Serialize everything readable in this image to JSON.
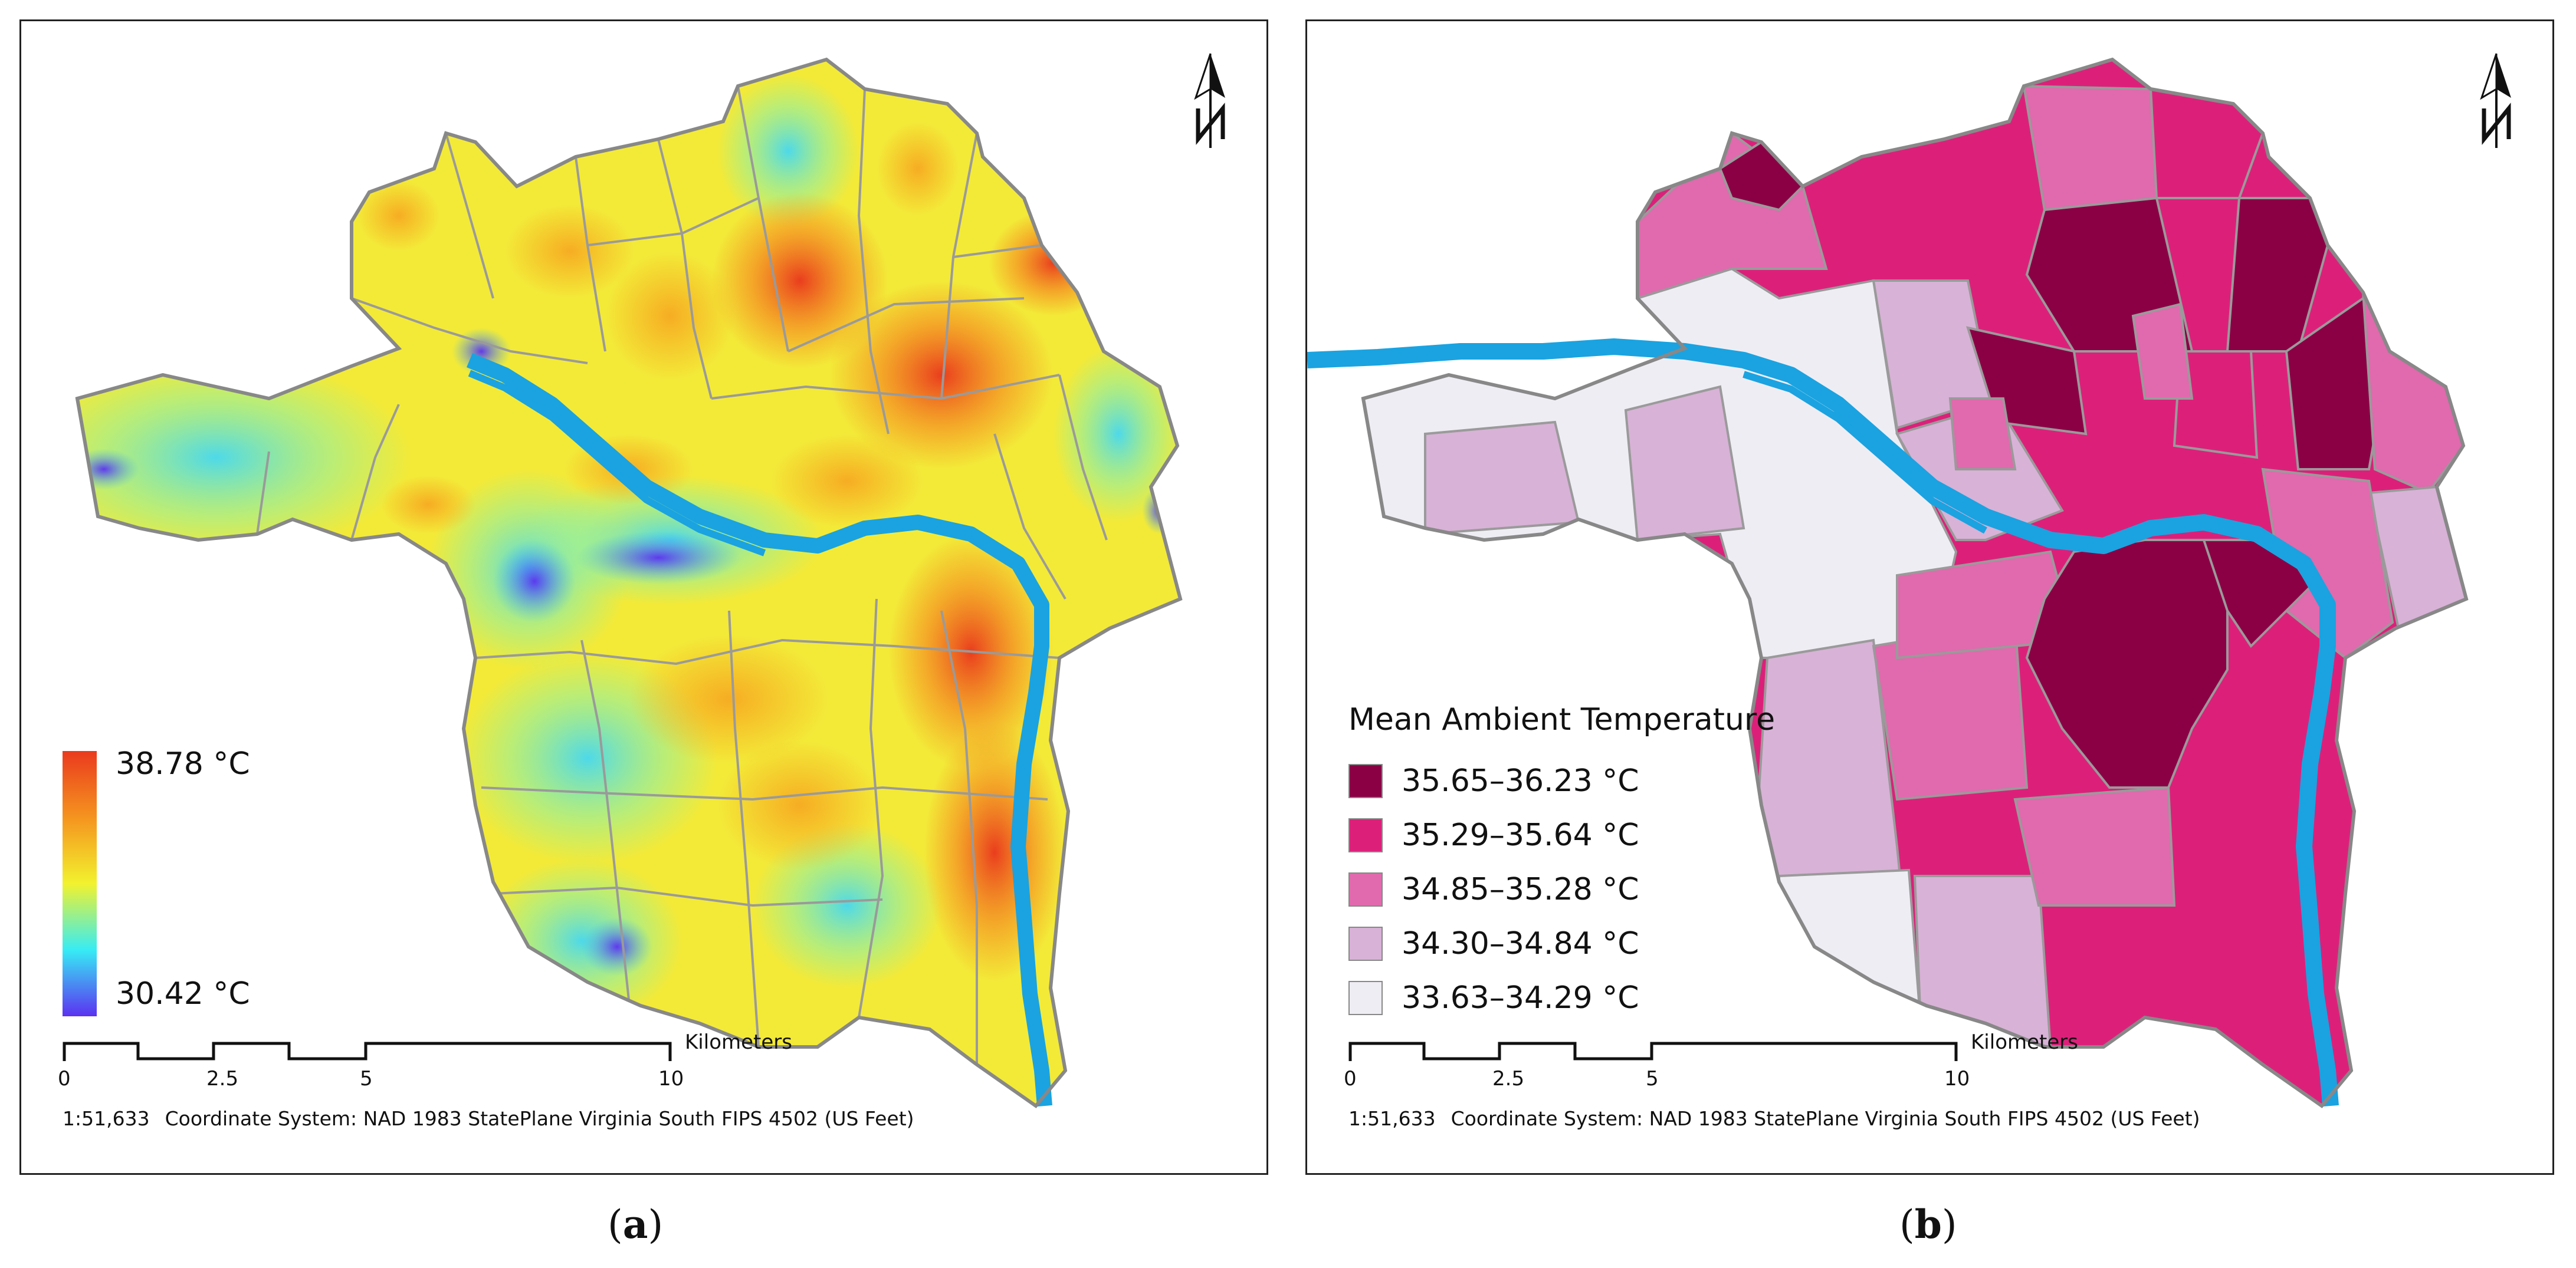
{
  "panels": {
    "a": {
      "caption_label": "a",
      "legend": {
        "max": "38.78 °C",
        "min": "30.42 °C"
      },
      "scale": {
        "ticks": [
          "0",
          "2.5",
          "5",
          "10"
        ],
        "unit": "Kilometers"
      },
      "scale_ratio": "1:51,633",
      "coordinate_system": "Coordinate System: NAD 1983 StatePlane Virginia South FIPS 4502 (US Feet)"
    },
    "b": {
      "caption_label": "b",
      "legend": {
        "title": "Mean Ambient Temperature",
        "classes": [
          {
            "label": "35.65–36.23 °C",
            "color": "#8b0045"
          },
          {
            "label": "35.29–35.64 °C",
            "color": "#dc207a"
          },
          {
            "label": "34.85–35.28 °C",
            "color": "#e06aad"
          },
          {
            "label": "34.30–34.84 °C",
            "color": "#d8b2d7"
          },
          {
            "label": "33.63–34.29 °C",
            "color": "#efedf4"
          }
        ]
      },
      "scale": {
        "ticks": [
          "0",
          "2.5",
          "5",
          "10"
        ],
        "unit": "Kilometers"
      },
      "scale_ratio": "1:51,633",
      "coordinate_system": "Coordinate System: NAD 1983 StatePlane Virginia South FIPS 4502 (US Feet)"
    }
  },
  "colors": {
    "river": "#1aa3e0",
    "boundary": "#9a9a9a"
  }
}
